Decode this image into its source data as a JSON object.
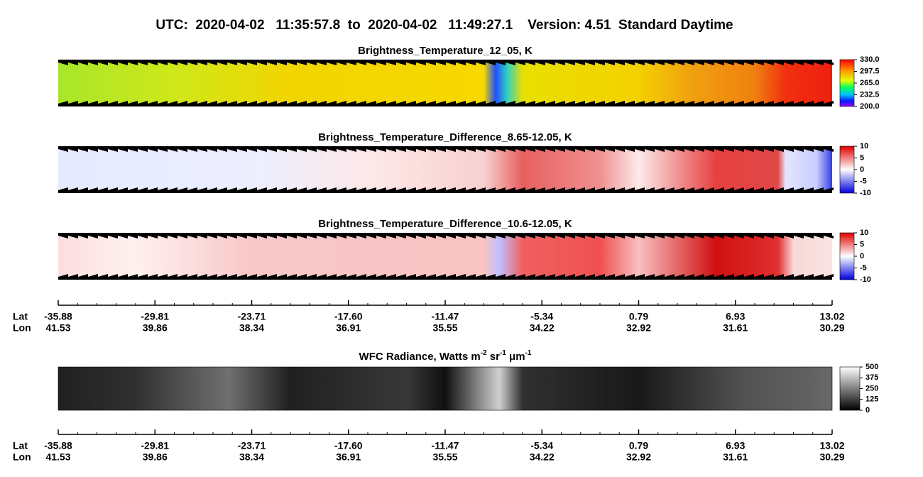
{
  "header": {
    "title": "UTC:  2020-04-02   11:35:57.8  to  2020-04-02   11:49:27.1    Version: 4.51  Standard Daytime"
  },
  "panels": [
    {
      "title": [
        "Brightness_Temperature_12_05, K"
      ],
      "colorbar": [
        "330.0",
        "297.5",
        "265.0",
        "232.5",
        "200.0"
      ]
    },
    {
      "title": [
        "Brightness_Temperature_Difference_8.65-12.05, K"
      ],
      "colorbar": [
        "10",
        "5",
        "0",
        "-5",
        "-10"
      ]
    },
    {
      "title": [
        "Brightness_Temperature_Difference_10.6-12.05, K"
      ],
      "colorbar": [
        "10",
        "5",
        "0",
        "-5",
        "-10"
      ]
    },
    {
      "title": [
        "WFC Radiance, Watts m",
        "-2",
        " sr",
        "-1",
        " μm",
        "-1"
      ],
      "colorbar": [
        "500",
        "375",
        "250",
        "125",
        "0"
      ]
    }
  ],
  "axes": [
    {
      "lat_label": "Lat",
      "lon_label": "Lon",
      "lat": [
        "-35.88",
        "-29.81",
        "-23.71",
        "-17.60",
        "-11.47",
        "-5.34",
        "0.79",
        "6.93",
        "13.02"
      ],
      "lon": [
        "41.53",
        "39.86",
        "38.34",
        "36.91",
        "35.55",
        "34.22",
        "32.92",
        "31.61",
        "30.29"
      ]
    },
    {
      "lat_label": "Lat",
      "lon_label": "Lon",
      "lat": [
        "-35.88",
        "-29.81",
        "-23.71",
        "-17.60",
        "-11.47",
        "-5.34",
        "0.79",
        "6.93",
        "13.02"
      ],
      "lon": [
        "41.53",
        "39.86",
        "38.34",
        "36.91",
        "35.55",
        "34.22",
        "32.92",
        "31.61",
        "30.29"
      ]
    }
  ]
}
